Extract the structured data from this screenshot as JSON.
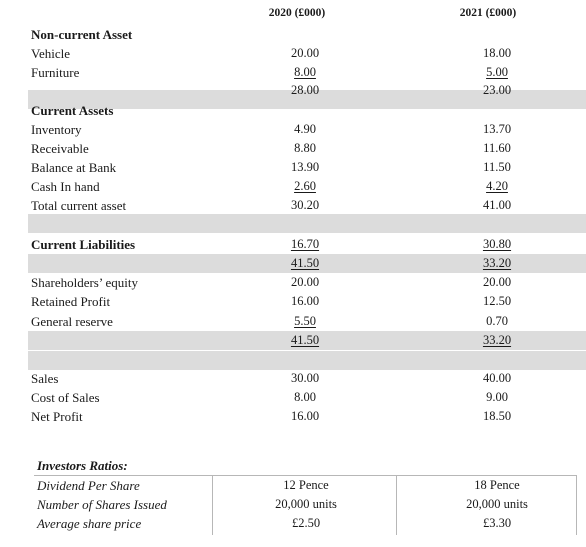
{
  "header": {
    "col_2020": "2020 (£000)",
    "col_2021": "2021 (£000)"
  },
  "non_current": {
    "title": "Non-current Asset",
    "rows": [
      {
        "label": "Vehicle",
        "v2020": "20.00",
        "v2021": "18.00"
      },
      {
        "label": "Furniture",
        "v2020": "8.00",
        "v2021": "5.00"
      },
      {
        "label": "",
        "v2020": "28.00",
        "v2021": "23.00"
      }
    ]
  },
  "current_assets": {
    "title": "Current Assets",
    "rows": [
      {
        "label": "Inventory",
        "v2020": "4.90",
        "v2021": "13.70"
      },
      {
        "label": "Receivable",
        "v2020": "8.80",
        "v2021": "11.60"
      },
      {
        "label": "Balance at Bank",
        "v2020": "13.90",
        "v2021": "11.50"
      },
      {
        "label": "Cash In hand",
        "v2020": "2.60",
        "v2021": "4.20"
      },
      {
        "label": "Total current asset",
        "v2020": "30.20",
        "v2021": "41.00"
      }
    ]
  },
  "current_liabilities": {
    "title": "Current Liabilities",
    "v2020": "16.70",
    "v2021": "30.80",
    "net_v2020": "41.50",
    "net_v2021": "33.20"
  },
  "equity": {
    "rows": [
      {
        "label": "Shareholders’ equity",
        "v2020": "20.00",
        "v2021": "20.00"
      },
      {
        "label": "Retained Profit",
        "v2020": "16.00",
        "v2021": "12.50"
      },
      {
        "label": "General reserve",
        "v2020": "5.50",
        "v2021": "0.70"
      },
      {
        "label": "",
        "v2020": "41.50",
        "v2021": "33.20"
      }
    ]
  },
  "income": {
    "rows": [
      {
        "label": "Sales",
        "v2020": "30.00",
        "v2021": "40.00"
      },
      {
        "label": "Cost of Sales",
        "v2020": "8.00",
        "v2021": "9.00"
      },
      {
        "label": "Net Profit",
        "v2020": "16.00",
        "v2021": "18.50"
      }
    ]
  },
  "investors": {
    "title": "Investors Ratios:",
    "rows": [
      {
        "label": "Dividend Per Share",
        "v2020": "12 Pence",
        "v2021": "18 Pence"
      },
      {
        "label": "Number of Shares Issued",
        "v2020": "20,000 units",
        "v2021": "20,000 units"
      },
      {
        "label": "Average share price",
        "v2020": "£2.50",
        "v2021": "£3.30"
      }
    ]
  }
}
